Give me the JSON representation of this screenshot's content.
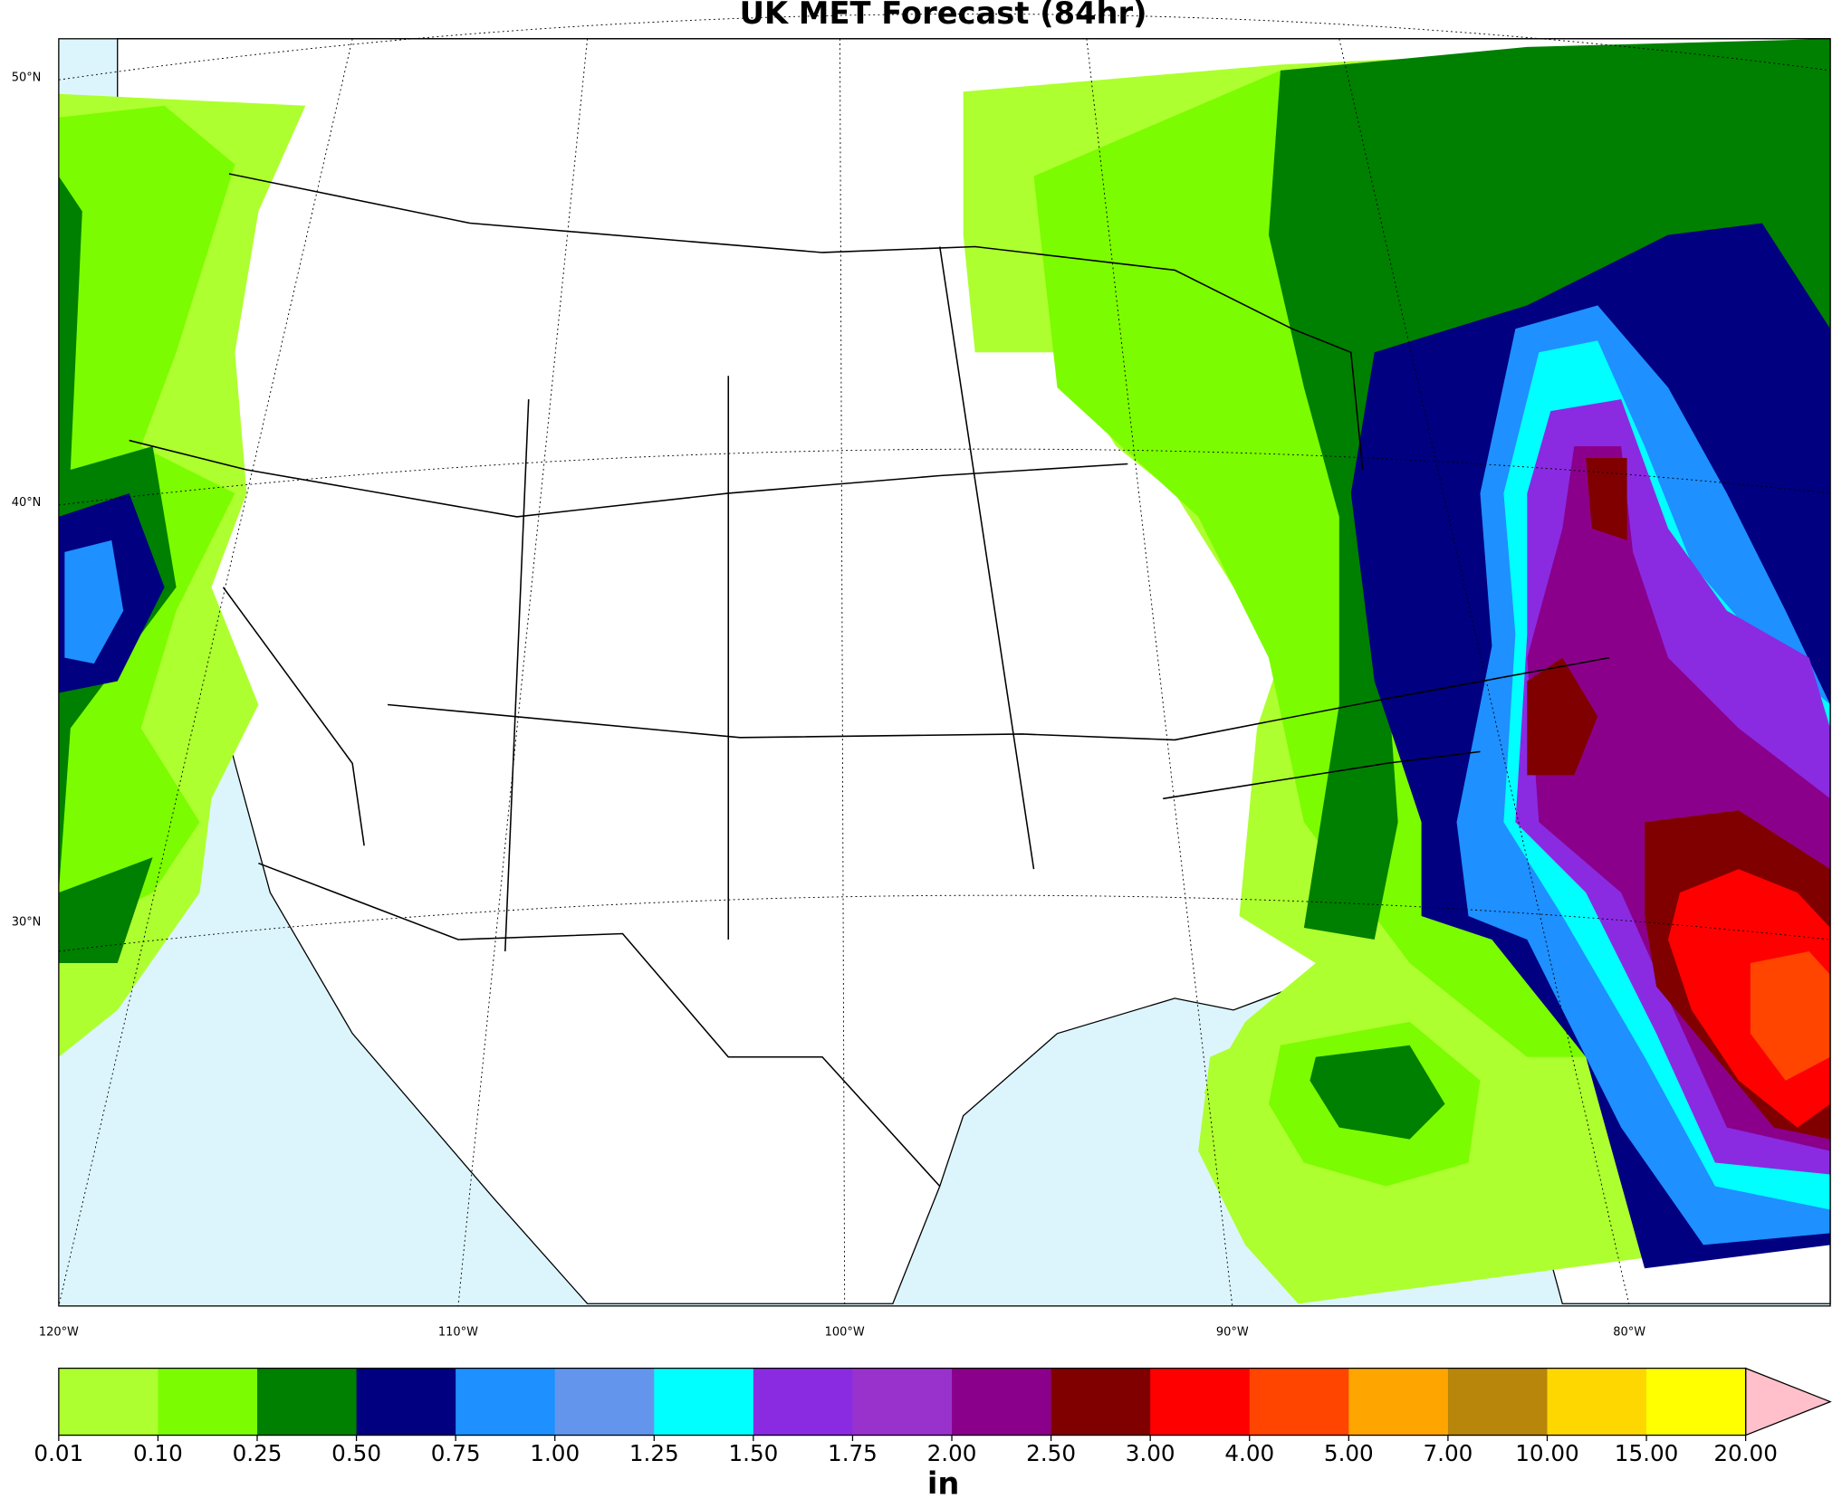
{
  "header": {
    "title": "UK MET Forecast (84hr)"
  },
  "map": {
    "lat_labels": [
      "50°N",
      "40°N",
      "30°N"
    ],
    "lon_labels": [
      "120°W",
      "110°W",
      "100°W",
      "90°W",
      "80°W"
    ]
  },
  "colorbar": {
    "label": "in",
    "colors": [
      "#adff2f",
      "#7cfc00",
      "#008000",
      "#000080",
      "#1e90ff",
      "#6495ed",
      "#00ffff",
      "#8a2be2",
      "#9932cc",
      "#8b008b",
      "#800000",
      "#ff0000",
      "#ff4500",
      "#ffa500",
      "#b8860b",
      "#ffd700",
      "#ffff00"
    ],
    "extend_color": "#ffc0cb",
    "ticks": [
      {
        "value": 0.01,
        "label": "0.01"
      },
      {
        "value": 0.1,
        "label": "0.10"
      },
      {
        "value": 0.25,
        "label": "0.25"
      },
      {
        "value": 0.5,
        "label": "0.50"
      },
      {
        "value": 0.75,
        "label": "0.75"
      },
      {
        "value": 1,
        "label": "1.00"
      },
      {
        "value": 1.25,
        "label": "1.25"
      },
      {
        "value": 1.5,
        "label": "1.50"
      },
      {
        "value": 1.75,
        "label": "1.75"
      },
      {
        "value": 2,
        "label": "2.00"
      },
      {
        "value": 2.5,
        "label": "2.50"
      },
      {
        "value": 3,
        "label": "3.00"
      },
      {
        "value": 4,
        "label": "4.00"
      },
      {
        "value": 5,
        "label": "5.00"
      },
      {
        "value": 7,
        "label": "7.00"
      },
      {
        "value": 10,
        "label": "10.00"
      },
      {
        "value": 15,
        "label": "15.00"
      },
      {
        "value": 20,
        "label": "20.00"
      }
    ]
  }
}
